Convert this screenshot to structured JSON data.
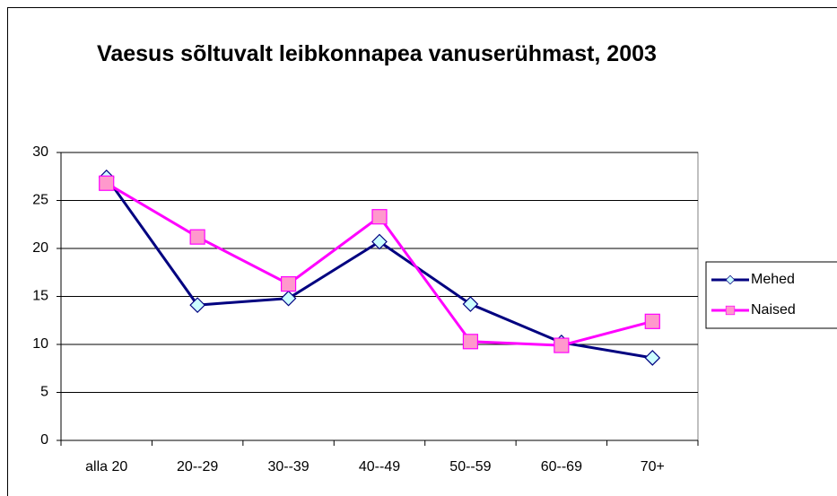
{
  "chart_data": {
    "type": "line",
    "title": "Vaesus sõltuvalt leibkonnapea vanuserühmast, 2003",
    "categories": [
      "alla 20",
      "20--29",
      "30--39",
      "40--49",
      "50--59",
      "60--69",
      "70+"
    ],
    "series": [
      {
        "name": "Mehed",
        "color": "#000080",
        "marker": "diamond",
        "marker_fill": "#ccffff",
        "values": [
          27.4,
          14.1,
          14.8,
          20.7,
          14.2,
          10.2,
          8.6
        ]
      },
      {
        "name": "Naised",
        "color": "#ff00ff",
        "marker": "square",
        "marker_fill": "#ff99cc",
        "values": [
          26.8,
          21.2,
          16.3,
          23.3,
          10.3,
          9.9,
          12.4
        ]
      }
    ],
    "ylim": [
      0,
      30
    ],
    "yticks": [
      0,
      5,
      10,
      15,
      20,
      25,
      30
    ],
    "grid": true,
    "legend": "right"
  }
}
